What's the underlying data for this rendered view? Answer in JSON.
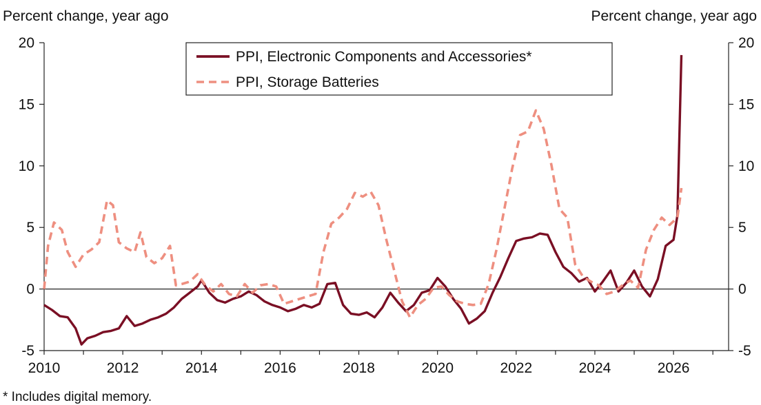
{
  "left_axis_title": "Percent change, year ago",
  "right_axis_title": "Percent change, year ago",
  "footnote": "* Includes digital memory.",
  "chart_data": {
    "type": "line",
    "title": "",
    "xlabel": "",
    "ylabel": "Percent change, year ago",
    "y2label": "Percent change, year ago",
    "xlim": [
      2010,
      2027.4
    ],
    "ylim": [
      -5,
      20
    ],
    "x_ticks": [
      2010,
      2012,
      2014,
      2016,
      2018,
      2020,
      2022,
      2024,
      2026
    ],
    "y_ticks": [
      -5,
      0,
      5,
      10,
      15,
      20
    ],
    "zero_line": true,
    "grid": false,
    "legend_position": "top-center",
    "series": [
      {
        "name": "PPI, Electronic Components and Accessories*",
        "color": "#7a0f24",
        "style": "solid",
        "x": [
          2010.0,
          2010.2,
          2010.4,
          2010.6,
          2010.8,
          2010.95,
          2011.1,
          2011.3,
          2011.5,
          2011.7,
          2011.9,
          2012.1,
          2012.3,
          2012.5,
          2012.7,
          2012.9,
          2013.1,
          2013.3,
          2013.5,
          2013.7,
          2013.9,
          2014.0,
          2014.2,
          2014.4,
          2014.6,
          2014.8,
          2015.0,
          2015.2,
          2015.4,
          2015.6,
          2015.8,
          2016.0,
          2016.2,
          2016.4,
          2016.6,
          2016.8,
          2017.0,
          2017.2,
          2017.4,
          2017.6,
          2017.8,
          2018.0,
          2018.2,
          2018.4,
          2018.6,
          2018.8,
          2019.0,
          2019.2,
          2019.4,
          2019.6,
          2019.8,
          2020.0,
          2020.2,
          2020.4,
          2020.6,
          2020.8,
          2021.0,
          2021.2,
          2021.4,
          2021.6,
          2021.8,
          2022.0,
          2022.2,
          2022.4,
          2022.6,
          2022.8,
          2023.0,
          2023.2,
          2023.4,
          2023.6,
          2023.8,
          2024.0,
          2024.2,
          2024.4,
          2024.6,
          2024.8,
          2025.0,
          2025.2,
          2025.4,
          2025.6,
          2025.8,
          2026.0,
          2026.1,
          2026.2
        ],
        "values": [
          -1.3,
          -1.7,
          -2.2,
          -2.3,
          -3.2,
          -4.5,
          -4.0,
          -3.8,
          -3.5,
          -3.4,
          -3.2,
          -2.2,
          -3.0,
          -2.8,
          -2.5,
          -2.3,
          -2.0,
          -1.5,
          -0.8,
          -0.3,
          0.2,
          0.7,
          -0.3,
          -0.9,
          -1.1,
          -0.8,
          -0.6,
          -0.2,
          -0.5,
          -1.0,
          -1.3,
          -1.5,
          -1.8,
          -1.6,
          -1.3,
          -1.5,
          -1.2,
          0.4,
          0.5,
          -1.3,
          -2.0,
          -2.1,
          -1.9,
          -2.3,
          -1.5,
          -0.3,
          -1.1,
          -1.8,
          -1.3,
          -0.3,
          -0.1,
          0.9,
          0.2,
          -0.8,
          -1.6,
          -2.8,
          -2.4,
          -1.8,
          -0.3,
          1.0,
          2.5,
          3.9,
          4.1,
          4.2,
          4.5,
          4.4,
          3.0,
          1.8,
          1.3,
          0.6,
          0.9,
          -0.2,
          0.6,
          1.5,
          -0.2,
          0.5,
          1.5,
          0.2,
          -0.6,
          0.8,
          3.5,
          4.0,
          6.0,
          19.0
        ]
      },
      {
        "name": "PPI, Storage Batteries",
        "color": "#ee8f80",
        "style": "dashed",
        "x": [
          2010.0,
          2010.1,
          2010.25,
          2010.45,
          2010.6,
          2010.8,
          2011.0,
          2011.2,
          2011.4,
          2011.6,
          2011.75,
          2011.9,
          2012.1,
          2012.3,
          2012.45,
          2012.6,
          2012.8,
          2013.0,
          2013.2,
          2013.35,
          2013.5,
          2013.7,
          2013.9,
          2014.1,
          2014.3,
          2014.5,
          2014.7,
          2014.9,
          2015.1,
          2015.3,
          2015.5,
          2015.7,
          2015.9,
          2016.1,
          2016.3,
          2016.5,
          2016.7,
          2016.9,
          2017.1,
          2017.3,
          2017.5,
          2017.7,
          2017.9,
          2018.1,
          2018.3,
          2018.5,
          2018.7,
          2018.9,
          2019.1,
          2019.3,
          2019.5,
          2019.7,
          2019.9,
          2020.1,
          2020.3,
          2020.5,
          2020.7,
          2020.9,
          2021.1,
          2021.3,
          2021.5,
          2021.7,
          2021.9,
          2022.1,
          2022.3,
          2022.5,
          2022.7,
          2022.9,
          2023.1,
          2023.3,
          2023.5,
          2023.7,
          2023.9,
          2024.1,
          2024.3,
          2024.5,
          2024.7,
          2024.9,
          2025.1,
          2025.3,
          2025.5,
          2025.7,
          2025.9,
          2026.1,
          2026.2
        ],
        "values": [
          0.0,
          3.5,
          5.4,
          4.8,
          3.0,
          1.8,
          2.8,
          3.2,
          3.8,
          7.2,
          6.8,
          3.8,
          3.3,
          3.0,
          4.6,
          2.6,
          2.1,
          2.5,
          3.5,
          0.3,
          0.4,
          0.6,
          1.2,
          0.3,
          -0.2,
          0.4,
          -0.4,
          -0.6,
          0.4,
          -0.3,
          0.3,
          0.4,
          0.2,
          -1.2,
          -1.0,
          -0.8,
          -0.6,
          -0.4,
          3.0,
          5.3,
          5.8,
          6.5,
          7.8,
          7.5,
          7.9,
          6.8,
          4.0,
          1.5,
          -1.0,
          -2.3,
          -1.3,
          -0.8,
          0.1,
          0.2,
          -0.5,
          -1.0,
          -1.2,
          -1.3,
          -1.2,
          0.4,
          3.2,
          6.5,
          9.8,
          12.5,
          12.8,
          14.5,
          13.0,
          10.0,
          6.5,
          5.8,
          2.0,
          1.0,
          0.6,
          0.3,
          -0.4,
          -0.2,
          0.3,
          0.7,
          0.1,
          3.2,
          4.8,
          5.8,
          5.2,
          5.8,
          8.2
        ]
      }
    ]
  }
}
